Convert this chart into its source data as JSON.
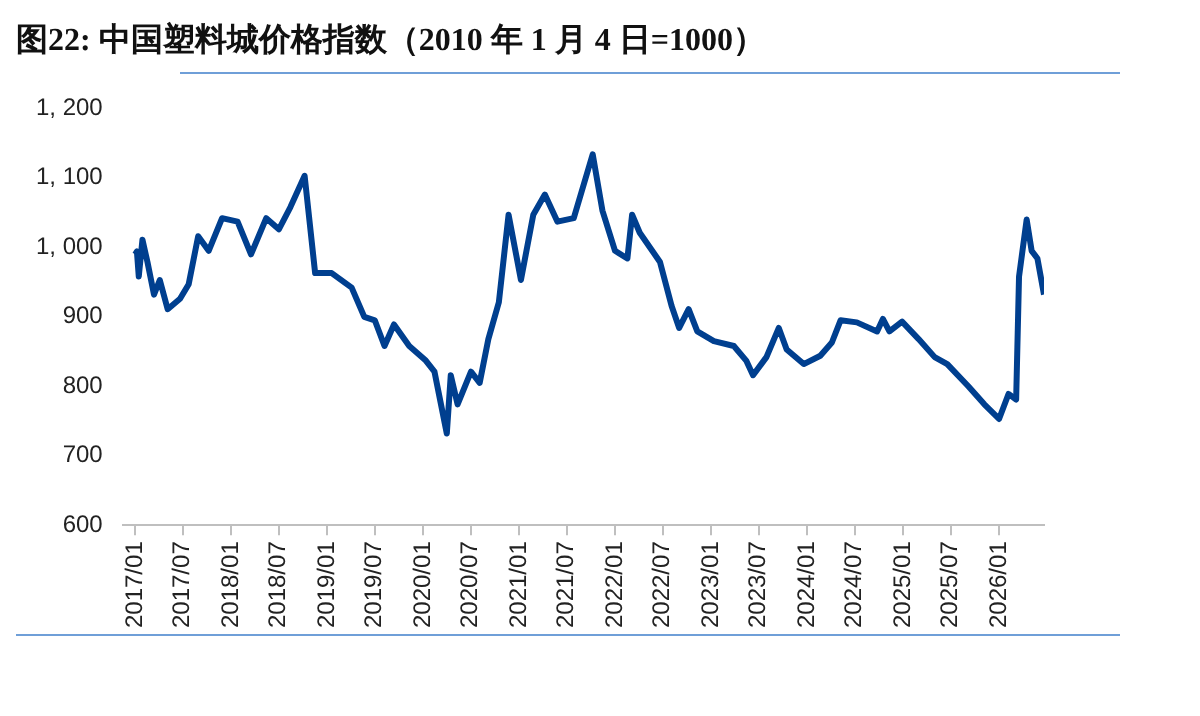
{
  "chart_data": {
    "type": "line",
    "title": "图22: 中国塑料城价格指数（2010 年 1 月 4 日=1000）",
    "x": [
      "2017-01-01",
      "2017-01-08",
      "2017-01-15",
      "2017-01-29",
      "2017-02-17",
      "2017-03-14",
      "2017-04-05",
      "2017-05-05",
      "2017-06-21",
      "2017-07-24",
      "2017-08-29",
      "2017-10-08",
      "2017-11-28",
      "2018-01-26",
      "2018-03-18",
      "2018-05-15",
      "2018-07-02",
      "2018-08-15",
      "2018-10-08",
      "2018-11-17",
      "2019-01-19",
      "2019-04-05",
      "2019-05-23",
      "2019-07-02",
      "2019-08-08",
      "2019-09-13",
      "2019-11-10",
      "2020-01-12",
      "2020-02-14",
      "2020-04-01",
      "2020-04-16",
      "2020-05-12",
      "2020-07-02",
      "2020-08-04",
      "2020-09-06",
      "2020-10-16",
      "2020-11-22",
      "2021-01-08",
      "2021-02-24",
      "2021-04-09",
      "2021-05-27",
      "2021-07-28",
      "2021-10-08",
      "2021-11-14",
      "2022-01-01",
      "2022-02-17",
      "2022-03-07",
      "2022-04-05",
      "2022-06-21",
      "2022-08-04",
      "2022-09-02",
      "2022-10-08",
      "2022-11-10",
      "2023-01-12",
      "2023-03-29",
      "2023-05-15",
      "2023-06-10",
      "2023-07-31",
      "2023-09-16",
      "2023-10-16",
      "2023-12-20",
      "2024-02-21",
      "2024-04-05",
      "2024-05-08",
      "2024-07-09",
      "2024-09-24",
      "2024-10-16",
      "2024-11-10",
      "2024-12-28",
      "2025-03-01",
      "2025-05-01",
      "2025-06-18",
      "2025-09-06",
      "2025-11-06",
      "2026-01-01",
      "2026-02-06",
      "2026-03-07",
      "2026-03-18",
      "2026-04-16",
      "2026-05-05",
      "2026-05-27",
      "2026-06-21"
    ],
    "series": [
      {
        "color": "#003f8f",
        "values": [
          990,
          994,
          958,
          1011,
          979,
          932,
          953,
          911,
          926,
          947,
          1016,
          995,
          1042,
          1037,
          990,
          1042,
          1026,
          1058,
          1103,
          963,
          963,
          942,
          900,
          895,
          858,
          889,
          858,
          837,
          821,
          732,
          816,
          774,
          821,
          805,
          868,
          921,
          1047,
          953,
          1047,
          1076,
          1037,
          1042,
          1134,
          1053,
          995,
          984,
          1047,
          1021,
          979,
          916,
          884,
          911,
          879,
          865,
          858,
          837,
          816,
          842,
          884,
          853,
          832,
          844,
          863,
          895,
          892,
          879,
          897,
          879,
          893,
          868,
          842,
          832,
          800,
          774,
          753,
          789,
          781,
          958,
          1040,
          995,
          984,
          932
        ]
      }
    ],
    "xlim": [
      "2016-11-15",
      "2026-06-21"
    ],
    "xticks": [
      {
        "value": "2017-01",
        "label": "2017/01"
      },
      {
        "value": "2017-07",
        "label": "2017/07"
      },
      {
        "value": "2018-01",
        "label": "2018/01"
      },
      {
        "value": "2018-07",
        "label": "2018/07"
      },
      {
        "value": "2019-01",
        "label": "2019/01"
      },
      {
        "value": "2019-07",
        "label": "2019/07"
      },
      {
        "value": "2020-01",
        "label": "2020/01"
      },
      {
        "value": "2020-07",
        "label": "2020/07"
      },
      {
        "value": "2021-01",
        "label": "2021/01"
      },
      {
        "value": "2021-07",
        "label": "2021/07"
      },
      {
        "value": "2022-01",
        "label": "2022/01"
      },
      {
        "value": "2022-07",
        "label": "2022/07"
      },
      {
        "value": "2023-01",
        "label": "2023/01"
      },
      {
        "value": "2023-07",
        "label": "2023/07"
      },
      {
        "value": "2024-01",
        "label": "2024/01"
      },
      {
        "value": "2024-07",
        "label": "2024/07"
      },
      {
        "value": "2025-01",
        "label": "2025/01"
      },
      {
        "value": "2025-07",
        "label": "2025/07"
      },
      {
        "value": "2026-01",
        "label": "2026/01"
      }
    ],
    "ylim": [
      600,
      1200
    ],
    "yticks": [
      600,
      700,
      800,
      900,
      {
        "value": 1000,
        "label": "1, 000"
      },
      {
        "value": 1100,
        "label": "1, 100"
      },
      {
        "value": 1200,
        "label": "1, 200"
      }
    ],
    "grid": false,
    "legend": false,
    "marker": "none",
    "line_style": "solid"
  }
}
